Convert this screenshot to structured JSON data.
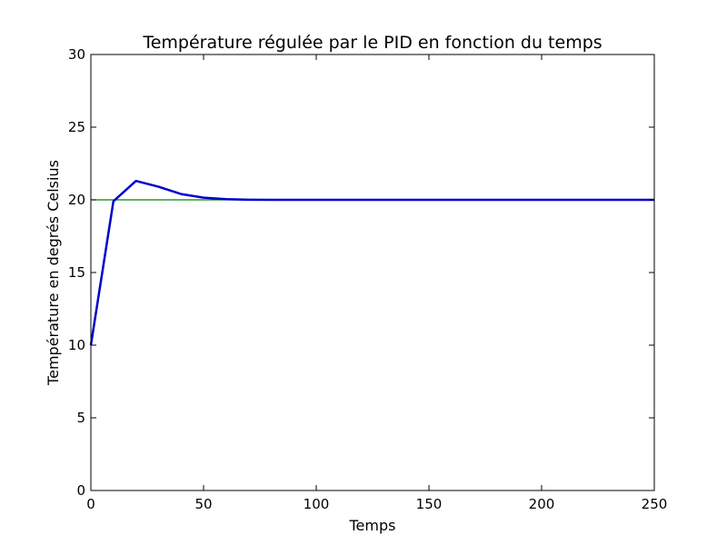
{
  "chart_data": {
    "type": "line",
    "title": "Température régulée par le PID en fonction du temps",
    "xlabel": "Temps",
    "ylabel": "Température en degrés Celsius",
    "xlim": [
      0,
      250
    ],
    "ylim": [
      0,
      30
    ],
    "xticks": [
      0,
      50,
      100,
      150,
      200,
      250
    ],
    "yticks": [
      0,
      5,
      10,
      15,
      20,
      25,
      30
    ],
    "grid": false,
    "legend": "none",
    "series": [
      {
        "color": "#0000cc",
        "x": [
          0,
          10,
          20,
          30,
          40,
          50,
          60,
          70,
          80,
          90,
          100,
          150,
          200,
          250
        ],
        "values": [
          10,
          19.9,
          21.3,
          20.9,
          20.4,
          20.15,
          20.05,
          20.01,
          20.0,
          20.0,
          20.0,
          20.0,
          20.0,
          20.0
        ]
      },
      {
        "color": "#008000",
        "x": [
          0,
          250
        ],
        "values": [
          20,
          20
        ]
      }
    ]
  }
}
